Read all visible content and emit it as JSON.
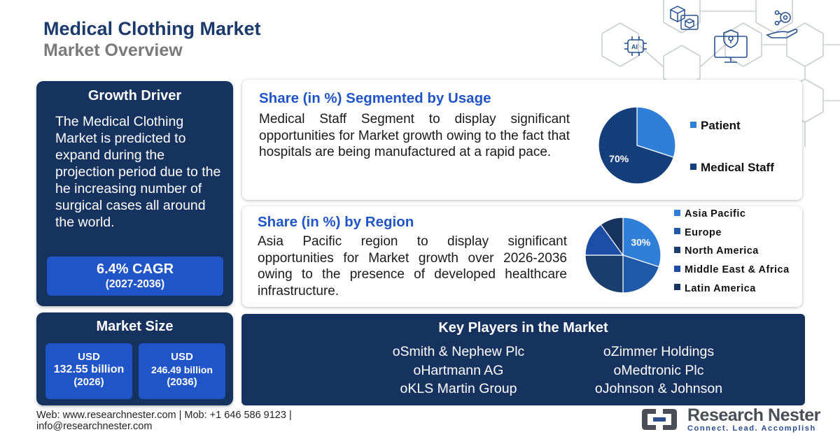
{
  "header": {
    "title": "Medical Clothing Market",
    "subtitle": "Market Overview"
  },
  "growth_driver": {
    "heading": "Growth Driver",
    "text": "The Medical Clothing Market is predicted to expand during the projection period due to the he increasing number of surgical cases all around the world.",
    "cagr": "6.4% CAGR",
    "cagr_period": "(2027-2036)"
  },
  "market_size": {
    "heading": "Market Size",
    "values": [
      {
        "currency": "USD",
        "amount": "132.55 billion",
        "year": "(2026)"
      },
      {
        "currency": "USD",
        "amount": "246.49 billion",
        "year": "(2036)"
      }
    ]
  },
  "usage_section": {
    "heading": "Share (in %) Segmented by Usage",
    "text": "Medical Staff Segment to display significant opportunities for Market growth owing to the fact that hospitals are being manufactured at a rapid pace."
  },
  "region_section": {
    "heading": "Share (in %) by Region",
    "text": "Asia Pacific region to display significant opportunities for Market growth over 2026-2036 owing to the presence of developed healthcare infrastructure."
  },
  "key_players": {
    "heading": "Key Players in the Market",
    "bullet": "o",
    "left": [
      "Smith & Nephew Plc",
      "Hartmann AG",
      "KLS Martin Group"
    ],
    "right": [
      "Zimmer Holdings",
      "Medtronic Plc",
      "Johnson & Johnson"
    ]
  },
  "footer": {
    "line1": "Web: www.researchnester.com | Mob: +1 646 586 9123 |",
    "line2": "info@researchnester.com",
    "brand": "Research Nester",
    "tagline": "Connect. Lead. Accomplish"
  },
  "colors": {
    "navy": "#16325e",
    "accent_blue": "#2055c8",
    "title_blue": "#1b3a6b",
    "pie_light": "#2f7fd8",
    "pie_dark": "#153f7a"
  },
  "icons": [
    "ai-chip-icon",
    "cubes-icon",
    "shield-monitor-icon",
    "gear-hand-icon"
  ],
  "chart_data": [
    {
      "type": "pie",
      "title": "Share (in %) Segmented by Usage",
      "categories": [
        "Patient",
        "Medical Staff"
      ],
      "values": [
        30,
        70
      ],
      "data_labels": [
        "",
        "70%"
      ],
      "colors": [
        "#2f7fd8",
        "#153f7a"
      ],
      "legend": "right"
    },
    {
      "type": "pie",
      "title": "Share (in %) by Region",
      "categories": [
        "Asia Pacific",
        "Europe",
        "North America",
        "Middle East & Africa",
        "Latin America"
      ],
      "values": [
        30,
        20,
        25,
        15,
        10
      ],
      "data_labels": [
        "30%",
        "",
        "",
        "",
        ""
      ],
      "colors": [
        "#2f7fd8",
        "#1f5aa8",
        "#1a3e6e",
        "#1c4ea6",
        "#173460"
      ],
      "legend": "right"
    }
  ]
}
